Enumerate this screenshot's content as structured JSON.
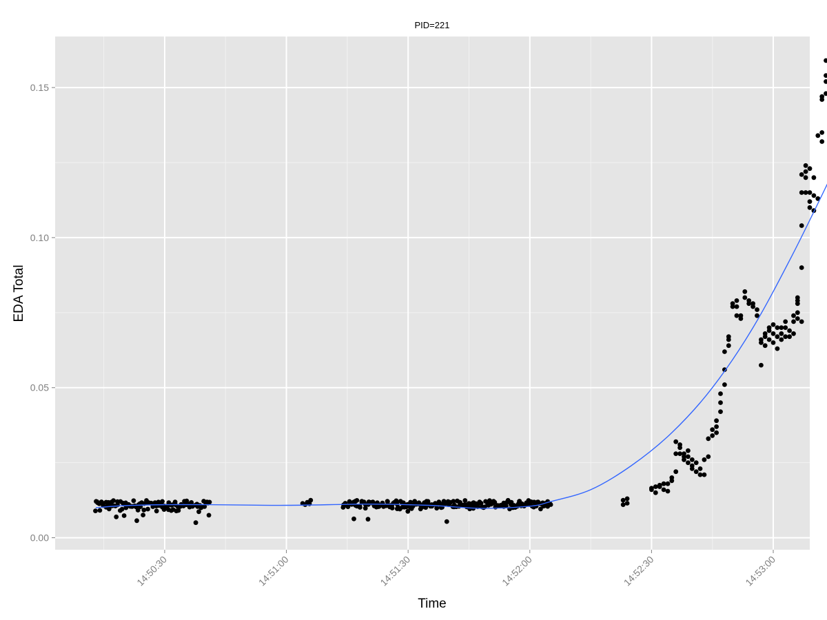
{
  "chart_data": {
    "type": "scatter",
    "title": "PID=221",
    "xlabel": "Time",
    "ylabel": "EDA Total",
    "x_unit": "time of day (HH:MM:SS)",
    "xlim": [
      "14:50:03",
      "14:53:09"
    ],
    "ylim": [
      -0.004,
      0.167
    ],
    "x_ticks": [
      "14:50:30",
      "14:51:00",
      "14:51:30",
      "14:52:00",
      "14:52:30",
      "14:53:00"
    ],
    "y_ticks": [
      "0.00",
      "0.05",
      "0.10",
      "0.15"
    ],
    "grid": true,
    "background": "#e5e5e5",
    "point_color": "#000000",
    "smooth_color": "#3366ff",
    "series": [
      {
        "kind": "points",
        "segments": [
          {
            "start": "14:50:13",
            "end": "14:50:41",
            "base": 0.0108,
            "noise": 0.0018,
            "low_outliers": true
          },
          {
            "start": "14:50:13",
            "end": "14:50:41",
            "base": 0.0112,
            "noise": 0.001,
            "low_outliers": false
          },
          {
            "start": "14:51:04",
            "end": "14:51:06",
            "base": 0.0115,
            "noise": 0.001,
            "low_outliers": false
          },
          {
            "start": "14:51:14",
            "end": "14:52:05",
            "base": 0.011,
            "noise": 0.0015,
            "low_outliers": true
          },
          {
            "start": "14:51:14",
            "end": "14:52:05",
            "base": 0.0112,
            "noise": 0.001,
            "low_outliers": false
          }
        ],
        "points": [
          [
            "14:52:23",
            0.011
          ],
          [
            "14:52:23",
            0.0125
          ],
          [
            "14:52:24",
            0.0115
          ],
          [
            "14:52:24",
            0.013
          ],
          [
            "14:52:30",
            0.016
          ],
          [
            "14:52:30",
            0.0165
          ],
          [
            "14:52:31",
            0.015
          ],
          [
            "14:52:31",
            0.017
          ],
          [
            "14:52:32",
            0.017
          ],
          [
            "14:52:32",
            0.0175
          ],
          [
            "14:52:33",
            0.016
          ],
          [
            "14:52:33",
            0.018
          ],
          [
            "14:52:34",
            0.018
          ],
          [
            "14:52:34",
            0.0155
          ],
          [
            "14:52:35",
            0.019
          ],
          [
            "14:52:35",
            0.02
          ],
          [
            "14:52:36",
            0.022
          ],
          [
            "14:52:36",
            0.028
          ],
          [
            "14:52:36",
            0.032
          ],
          [
            "14:52:37",
            0.031
          ],
          [
            "14:52:37",
            0.03
          ],
          [
            "14:52:37",
            0.028
          ],
          [
            "14:52:38",
            0.027
          ],
          [
            "14:52:38",
            0.026
          ],
          [
            "14:52:38",
            0.028
          ],
          [
            "14:52:39",
            0.025
          ],
          [
            "14:52:39",
            0.027
          ],
          [
            "14:52:39",
            0.029
          ],
          [
            "14:52:40",
            0.024
          ],
          [
            "14:52:40",
            0.026
          ],
          [
            "14:52:40",
            0.023
          ],
          [
            "14:52:41",
            0.022
          ],
          [
            "14:52:41",
            0.025
          ],
          [
            "14:52:42",
            0.021
          ],
          [
            "14:52:42",
            0.023
          ],
          [
            "14:52:43",
            0.021
          ],
          [
            "14:52:43",
            0.026
          ],
          [
            "14:52:44",
            0.027
          ],
          [
            "14:52:44",
            0.033
          ],
          [
            "14:52:45",
            0.034
          ],
          [
            "14:52:45",
            0.036
          ],
          [
            "14:52:46",
            0.035
          ],
          [
            "14:52:46",
            0.037
          ],
          [
            "14:52:46",
            0.039
          ],
          [
            "14:52:47",
            0.042
          ],
          [
            "14:52:47",
            0.045
          ],
          [
            "14:52:47",
            0.048
          ],
          [
            "14:52:48",
            0.051
          ],
          [
            "14:52:48",
            0.056
          ],
          [
            "14:52:48",
            0.062
          ],
          [
            "14:52:49",
            0.064
          ],
          [
            "14:52:49",
            0.066
          ],
          [
            "14:52:49",
            0.067
          ],
          [
            "14:52:50",
            0.077
          ],
          [
            "14:52:50",
            0.078
          ],
          [
            "14:52:51",
            0.079
          ],
          [
            "14:52:51",
            0.074
          ],
          [
            "14:52:51",
            0.077
          ],
          [
            "14:52:52",
            0.073
          ],
          [
            "14:52:52",
            0.074
          ],
          [
            "14:52:53",
            0.08
          ],
          [
            "14:52:53",
            0.082
          ],
          [
            "14:52:54",
            0.078
          ],
          [
            "14:52:54",
            0.079
          ],
          [
            "14:52:55",
            0.078
          ],
          [
            "14:52:55",
            0.077
          ],
          [
            "14:52:56",
            0.076
          ],
          [
            "14:52:56",
            0.074
          ],
          [
            "14:52:57",
            0.0575
          ],
          [
            "14:52:57",
            0.065
          ],
          [
            "14:52:57",
            0.066
          ],
          [
            "14:52:58",
            0.064
          ],
          [
            "14:52:58",
            0.067
          ],
          [
            "14:52:58",
            0.068
          ],
          [
            "14:52:59",
            0.069
          ],
          [
            "14:52:59",
            0.07
          ],
          [
            "14:52:59",
            0.066
          ],
          [
            "14:53:00",
            0.065
          ],
          [
            "14:53:00",
            0.068
          ],
          [
            "14:53:00",
            0.071
          ],
          [
            "14:53:01",
            0.063
          ],
          [
            "14:53:01",
            0.067
          ],
          [
            "14:53:01",
            0.07
          ],
          [
            "14:53:02",
            0.066
          ],
          [
            "14:53:02",
            0.068
          ],
          [
            "14:53:02",
            0.07
          ],
          [
            "14:53:03",
            0.07
          ],
          [
            "14:53:03",
            0.072
          ],
          [
            "14:53:03",
            0.067
          ],
          [
            "14:53:04",
            0.067
          ],
          [
            "14:53:04",
            0.069
          ],
          [
            "14:53:05",
            0.068
          ],
          [
            "14:53:05",
            0.072
          ],
          [
            "14:53:05",
            0.074
          ],
          [
            "14:53:06",
            0.073
          ],
          [
            "14:53:06",
            0.075
          ],
          [
            "14:53:06",
            0.079
          ],
          [
            "14:53:06",
            0.08
          ],
          [
            "14:53:06",
            0.078
          ],
          [
            "14:53:07",
            0.072
          ],
          [
            "14:53:07",
            0.09
          ],
          [
            "14:53:07",
            0.104
          ],
          [
            "14:53:07",
            0.115
          ],
          [
            "14:53:07",
            0.121
          ],
          [
            "14:53:08",
            0.122
          ],
          [
            "14:53:08",
            0.12
          ],
          [
            "14:53:08",
            0.124
          ],
          [
            "14:53:08",
            0.115
          ],
          [
            "14:53:09",
            0.123
          ],
          [
            "14:53:09",
            0.115
          ],
          [
            "14:53:09",
            0.11
          ],
          [
            "14:53:09",
            0.112
          ],
          [
            "14:53:10",
            0.109
          ],
          [
            "14:53:10",
            0.114
          ],
          [
            "14:53:10",
            0.12
          ],
          [
            "14:53:11",
            0.113
          ],
          [
            "14:53:11",
            0.134
          ],
          [
            "14:53:12",
            0.135
          ],
          [
            "14:53:12",
            0.132
          ],
          [
            "14:53:12",
            0.147
          ],
          [
            "14:53:12",
            0.146
          ],
          [
            "14:53:13",
            0.148
          ],
          [
            "14:53:13",
            0.152
          ],
          [
            "14:53:13",
            0.154
          ],
          [
            "14:53:13",
            0.159
          ],
          [
            "14:53:14",
            0.155
          ],
          [
            "14:53:14",
            0.149
          ],
          [
            "14:53:14",
            0.158
          ],
          [
            "14:53:14",
            0.155
          ]
        ]
      },
      {
        "kind": "smooth",
        "points": [
          [
            "14:50:13",
            0.01
          ],
          [
            "14:50:20",
            0.0107
          ],
          [
            "14:50:30",
            0.011
          ],
          [
            "14:50:41",
            0.011
          ],
          [
            "14:51:00",
            0.0108
          ],
          [
            "14:51:20",
            0.0112
          ],
          [
            "14:51:35",
            0.0108
          ],
          [
            "14:51:48",
            0.0098
          ],
          [
            "14:52:00",
            0.0105
          ],
          [
            "14:52:05",
            0.012
          ],
          [
            "14:52:15",
            0.016
          ],
          [
            "14:52:25",
            0.024
          ],
          [
            "14:52:35",
            0.035
          ],
          [
            "14:52:45",
            0.05
          ],
          [
            "14:52:55",
            0.07
          ],
          [
            "14:53:05",
            0.095
          ],
          [
            "14:53:15",
            0.1225
          ]
        ]
      }
    ]
  }
}
